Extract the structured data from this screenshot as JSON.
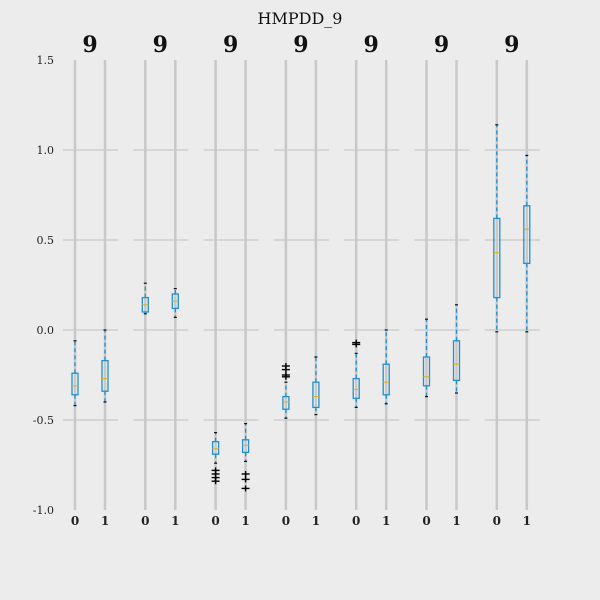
{
  "chart_data": {
    "type": "box",
    "title": "HMPDD_9",
    "ylim": [
      -1.0,
      1.5
    ],
    "yticks": [
      "1.5",
      "1.0",
      "0.5",
      "0.0",
      "-0.5",
      "-1.0"
    ],
    "ytick_values": [
      1.5,
      1.0,
      0.5,
      0.0,
      -0.5,
      -1.0
    ],
    "grid": true,
    "colors": {
      "box": "#1f8fcf",
      "median": "#d9b23a",
      "flier": "#000000",
      "grid": "#c8c8c8",
      "background": "#ececec"
    },
    "panels": [
      {
        "label": "9",
        "categories": [
          "0",
          "1"
        ],
        "boxes": [
          {
            "whislo": -0.42,
            "q1": -0.36,
            "med": -0.31,
            "q3": -0.24,
            "whishi": -0.06,
            "fliers": []
          },
          {
            "whislo": -0.4,
            "q1": -0.34,
            "med": -0.27,
            "q3": -0.17,
            "whishi": 0.0,
            "fliers": []
          }
        ]
      },
      {
        "label": "9",
        "categories": [
          "0",
          "1"
        ],
        "boxes": [
          {
            "whislo": 0.09,
            "q1": 0.1,
            "med": 0.14,
            "q3": 0.18,
            "whishi": 0.26,
            "fliers": []
          },
          {
            "whislo": 0.07,
            "q1": 0.12,
            "med": 0.16,
            "q3": 0.2,
            "whishi": 0.23,
            "fliers": []
          }
        ]
      },
      {
        "label": "9",
        "categories": [
          "0",
          "1"
        ],
        "boxes": [
          {
            "whislo": -0.74,
            "q1": -0.69,
            "med": -0.66,
            "q3": -0.62,
            "whishi": -0.57,
            "fliers": [
              -0.78,
              -0.8,
              -0.82,
              -0.84
            ]
          },
          {
            "whislo": -0.73,
            "q1": -0.68,
            "med": -0.64,
            "q3": -0.61,
            "whishi": -0.52,
            "fliers": [
              -0.8,
              -0.83,
              -0.88
            ]
          }
        ]
      },
      {
        "label": "9",
        "categories": [
          "0",
          "1"
        ],
        "boxes": [
          {
            "whislo": -0.49,
            "q1": -0.44,
            "med": -0.4,
            "q3": -0.37,
            "whishi": -0.29,
            "fliers": [
              -0.2,
              -0.22,
              -0.25,
              -0.26
            ]
          },
          {
            "whislo": -0.47,
            "q1": -0.43,
            "med": -0.37,
            "q3": -0.29,
            "whishi": -0.15,
            "fliers": []
          }
        ]
      },
      {
        "label": "9",
        "categories": [
          "0",
          "1"
        ],
        "boxes": [
          {
            "whislo": -0.43,
            "q1": -0.38,
            "med": -0.33,
            "q3": -0.27,
            "whishi": -0.13,
            "fliers": [
              -0.07,
              -0.08
            ]
          },
          {
            "whislo": -0.41,
            "q1": -0.36,
            "med": -0.29,
            "q3": -0.19,
            "whishi": 0.0,
            "fliers": []
          }
        ]
      },
      {
        "label": "9",
        "categories": [
          "0",
          "1"
        ],
        "boxes": [
          {
            "whislo": -0.37,
            "q1": -0.31,
            "med": -0.26,
            "q3": -0.15,
            "whishi": 0.06,
            "fliers": []
          },
          {
            "whislo": -0.35,
            "q1": -0.28,
            "med": -0.19,
            "q3": -0.06,
            "whishi": 0.14,
            "fliers": []
          }
        ]
      },
      {
        "label": "9",
        "categories": [
          "0",
          "1"
        ],
        "boxes": [
          {
            "whislo": -0.01,
            "q1": 0.18,
            "med": 0.43,
            "q3": 0.62,
            "whishi": 1.14,
            "fliers": []
          },
          {
            "whislo": -0.01,
            "q1": 0.37,
            "med": 0.56,
            "q3": 0.69,
            "whishi": 0.97,
            "fliers": []
          }
        ]
      }
    ]
  }
}
